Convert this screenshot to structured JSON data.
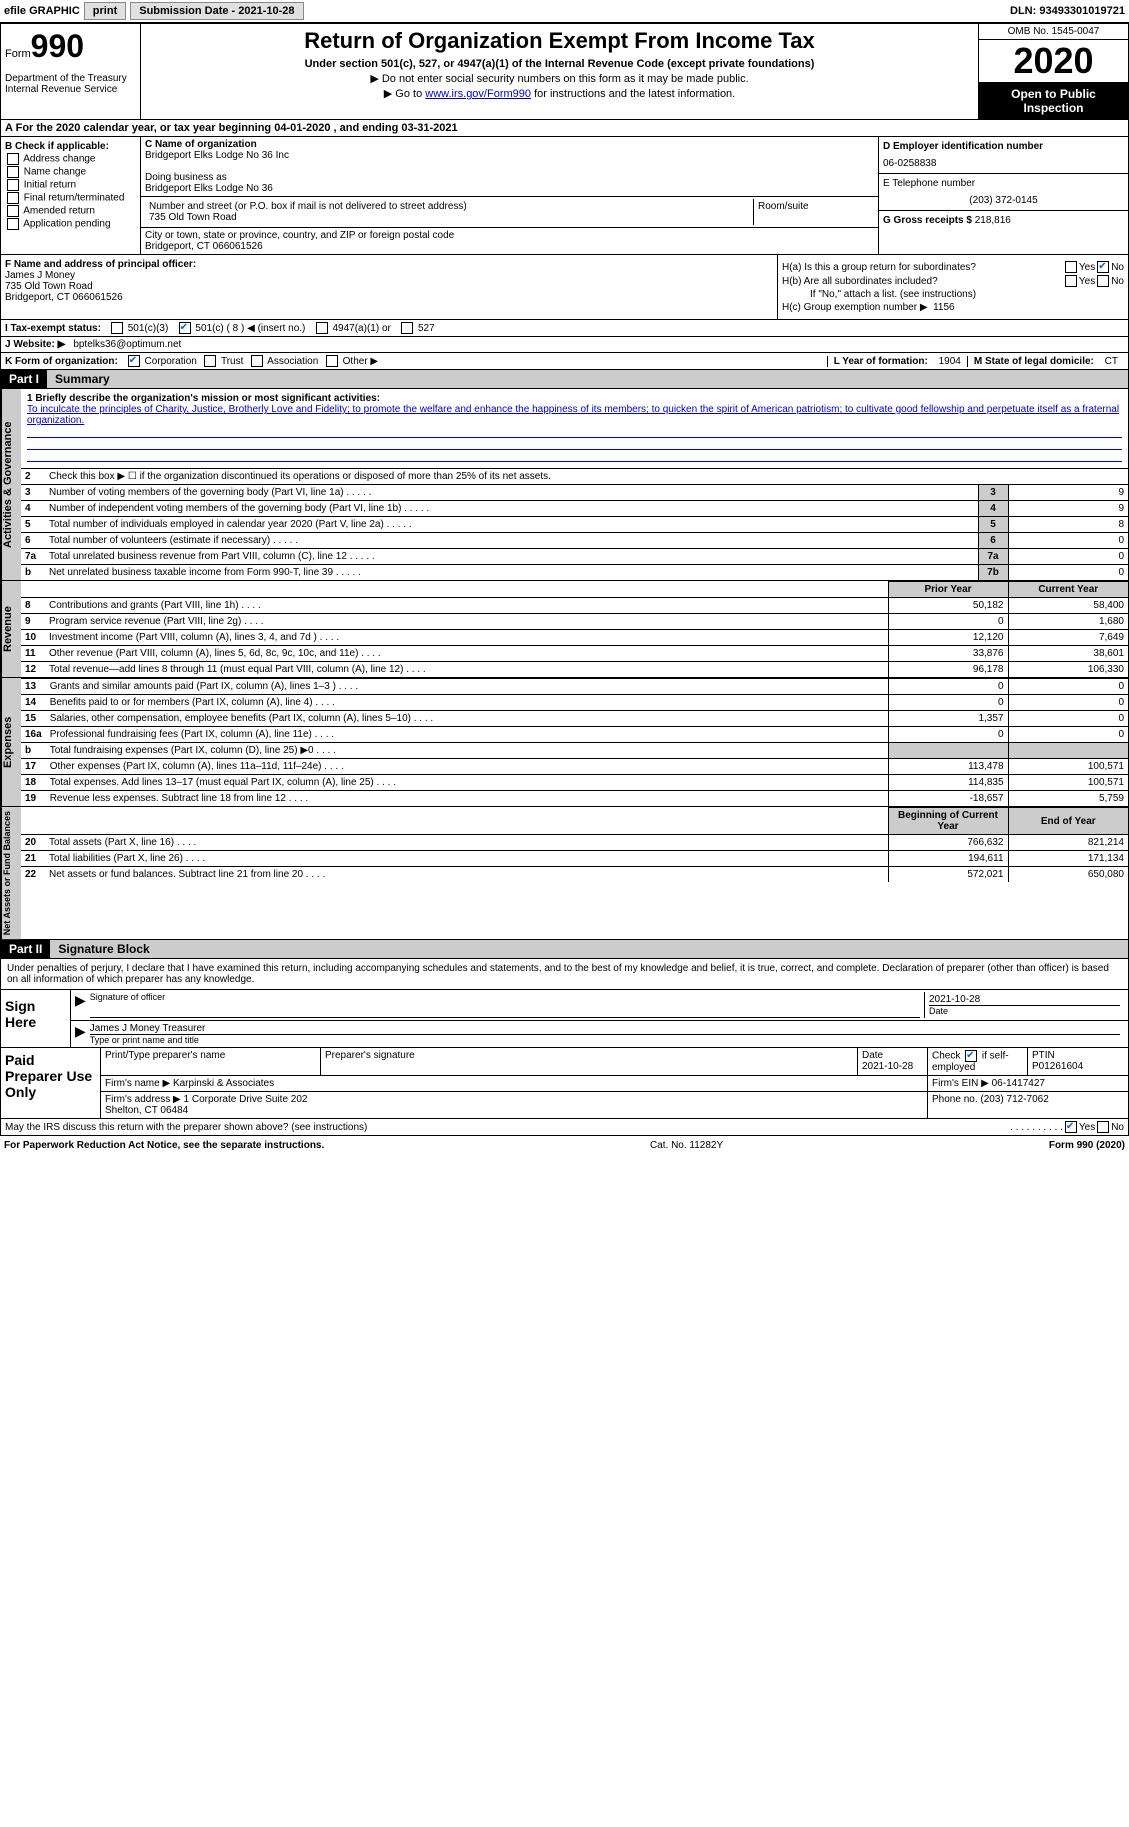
{
  "topbar": {
    "efile": "efile GRAPHIC",
    "print": "print",
    "submission": "Submission Date - 2021-10-28",
    "dln": "DLN: 93493301019721"
  },
  "header": {
    "form_word": "Form",
    "form_num": "990",
    "dept": "Department of the Treasury\nInternal Revenue Service",
    "title": "Return of Organization Exempt From Income Tax",
    "subtitle": "Under section 501(c), 527, or 4947(a)(1) of the Internal Revenue Code (except private foundations)",
    "note1": "▶ Do not enter social security numbers on this form as it may be made public.",
    "note2_pre": "▶ Go to ",
    "note2_link": "www.irs.gov/Form990",
    "note2_post": " for instructions and the latest information.",
    "omb": "OMB No. 1545-0047",
    "year": "2020",
    "inspect": "Open to Public Inspection"
  },
  "period": "For the 2020 calendar year, or tax year beginning 04-01-2020    , and ending 03-31-2021",
  "boxB": {
    "hdr": "B Check if applicable:",
    "items": [
      "Address change",
      "Name change",
      "Initial return",
      "Final return/terminated",
      "Amended return",
      "Application pending"
    ]
  },
  "boxC": {
    "name_lbl": "C Name of organization",
    "name": "Bridgeport Elks Lodge No 36 Inc",
    "dba_lbl": "Doing business as",
    "dba": "Bridgeport Elks Lodge No 36",
    "addr_lbl": "Number and street (or P.O. box if mail is not delivered to street address)",
    "room_lbl": "Room/suite",
    "addr": "735 Old Town Road",
    "city_lbl": "City or town, state or province, country, and ZIP or foreign postal code",
    "city": "Bridgeport, CT  066061526"
  },
  "boxD": {
    "ein_lbl": "D Employer identification number",
    "ein": "06-0258838",
    "phone_lbl": "E Telephone number",
    "phone": "(203) 372-0145",
    "gross_lbl": "G Gross receipts $",
    "gross": "218,816"
  },
  "boxF": {
    "lbl": "F Name and address of principal officer:",
    "name": "James J Money",
    "addr1": "735 Old Town Road",
    "addr2": "Bridgeport, CT  066061526"
  },
  "boxH": {
    "ha": "H(a)  Is this a group return for subordinates?",
    "hb": "H(b)  Are all subordinates included?",
    "hb_note": "If \"No,\" attach a list. (see instructions)",
    "hc": "H(c)  Group exemption number ▶",
    "hc_val": "1156",
    "yes": "Yes",
    "no": "No"
  },
  "lineI": {
    "lbl": "I    Tax-exempt status:",
    "opts": [
      "501(c)(3)",
      "501(c) ( 8 ) ◀ (insert no.)",
      "4947(a)(1) or",
      "527"
    ]
  },
  "lineJ": {
    "lbl": "J   Website: ▶",
    "val": "bptelks36@optimum.net"
  },
  "lineK": {
    "lbl": "K Form of organization:",
    "opts": [
      "Corporation",
      "Trust",
      "Association",
      "Other ▶"
    ]
  },
  "lineL": {
    "lbl": "L Year of formation:",
    "val": "1904"
  },
  "lineM": {
    "lbl": "M State of legal domicile:",
    "val": "CT"
  },
  "part1": {
    "num": "Part I",
    "title": "Summary"
  },
  "mission": {
    "q": "1  Briefly describe the organization's mission or most significant activities:",
    "ans": "To inculcate the principles of Charity, Justice, Brotherly Love and Fidelity; to promote the welfare and enhance the happiness of its members; to quicken the spirit of American patriotism; to cultivate good fellowship and perpetuate itself as a fraternal organization."
  },
  "line2": "Check this box ▶ ☐  if the organization discontinued its operations or disposed of more than 25% of its net assets.",
  "gov_rows": [
    {
      "n": "3",
      "desc": "Number of voting members of the governing body (Part VI, line 1a)",
      "box": "3",
      "val": "9"
    },
    {
      "n": "4",
      "desc": "Number of independent voting members of the governing body (Part VI, line 1b)",
      "box": "4",
      "val": "9"
    },
    {
      "n": "5",
      "desc": "Total number of individuals employed in calendar year 2020 (Part V, line 2a)",
      "box": "5",
      "val": "8"
    },
    {
      "n": "6",
      "desc": "Total number of volunteers (estimate if necessary)",
      "box": "6",
      "val": "0"
    },
    {
      "n": "7a",
      "desc": "Total unrelated business revenue from Part VIII, column (C), line 12",
      "box": "7a",
      "val": "0"
    },
    {
      "n": "b",
      "desc": "Net unrelated business taxable income from Form 990-T, line 39",
      "box": "7b",
      "val": "0"
    }
  ],
  "cols": {
    "prior": "Prior Year",
    "current": "Current Year"
  },
  "side": {
    "gov": "Activities & Governance",
    "rev": "Revenue",
    "exp": "Expenses",
    "net": "Net Assets or Fund Balances"
  },
  "rev_rows": [
    {
      "n": "8",
      "desc": "Contributions and grants (Part VIII, line 1h)",
      "p": "50,182",
      "c": "58,400"
    },
    {
      "n": "9",
      "desc": "Program service revenue (Part VIII, line 2g)",
      "p": "0",
      "c": "1,680"
    },
    {
      "n": "10",
      "desc": "Investment income (Part VIII, column (A), lines 3, 4, and 7d )",
      "p": "12,120",
      "c": "7,649"
    },
    {
      "n": "11",
      "desc": "Other revenue (Part VIII, column (A), lines 5, 6d, 8c, 9c, 10c, and 11e)",
      "p": "33,876",
      "c": "38,601"
    },
    {
      "n": "12",
      "desc": "Total revenue—add lines 8 through 11 (must equal Part VIII, column (A), line 12)",
      "p": "96,178",
      "c": "106,330"
    }
  ],
  "exp_rows": [
    {
      "n": "13",
      "desc": "Grants and similar amounts paid (Part IX, column (A), lines 1–3 )",
      "p": "0",
      "c": "0"
    },
    {
      "n": "14",
      "desc": "Benefits paid to or for members (Part IX, column (A), line 4)",
      "p": "0",
      "c": "0"
    },
    {
      "n": "15",
      "desc": "Salaries, other compensation, employee benefits (Part IX, column (A), lines 5–10)",
      "p": "1,357",
      "c": "0"
    },
    {
      "n": "16a",
      "desc": "Professional fundraising fees (Part IX, column (A), line 11e)",
      "p": "0",
      "c": "0"
    },
    {
      "n": "b",
      "desc": "Total fundraising expenses (Part IX, column (D), line 25) ▶0",
      "p": "",
      "c": "",
      "shade": true
    },
    {
      "n": "17",
      "desc": "Other expenses (Part IX, column (A), lines 11a–11d, 11f–24e)",
      "p": "113,478",
      "c": "100,571"
    },
    {
      "n": "18",
      "desc": "Total expenses. Add lines 13–17 (must equal Part IX, column (A), line 25)",
      "p": "114,835",
      "c": "100,571"
    },
    {
      "n": "19",
      "desc": "Revenue less expenses. Subtract line 18 from line 12",
      "p": "-18,657",
      "c": "5,759"
    }
  ],
  "net_cols": {
    "begin": "Beginning of Current Year",
    "end": "End of Year"
  },
  "net_rows": [
    {
      "n": "20",
      "desc": "Total assets (Part X, line 16)",
      "p": "766,632",
      "c": "821,214"
    },
    {
      "n": "21",
      "desc": "Total liabilities (Part X, line 26)",
      "p": "194,611",
      "c": "171,134"
    },
    {
      "n": "22",
      "desc": "Net assets or fund balances. Subtract line 21 from line 20",
      "p": "572,021",
      "c": "650,080"
    }
  ],
  "part2": {
    "num": "Part II",
    "title": "Signature Block"
  },
  "sig": {
    "decl": "Under penalties of perjury, I declare that I have examined this return, including accompanying schedules and statements, and to the best of my knowledge and belief, it is true, correct, and complete. Declaration of preparer (other than officer) is based on all information of which preparer has any knowledge.",
    "sign_here": "Sign Here",
    "sig_officer": "Signature of officer",
    "date": "Date",
    "date_val": "2021-10-28",
    "name_title": "James J Money Treasurer",
    "type_lbl": "Type or print name and title"
  },
  "prep": {
    "hdr": "Paid Preparer Use Only",
    "print_lbl": "Print/Type preparer's name",
    "sig_lbl": "Preparer's signature",
    "date_lbl": "Date",
    "date_val": "2021-10-28",
    "check_lbl": "Check ☑ if self-employed",
    "ptin_lbl": "PTIN",
    "ptin": "P01261604",
    "firm_name_lbl": "Firm's name    ▶",
    "firm_name": "Karpinski & Associates",
    "firm_ein_lbl": "Firm's EIN ▶",
    "firm_ein": "06-1417427",
    "firm_addr_lbl": "Firm's address ▶",
    "firm_addr": "1 Corporate Drive Suite 202\nShelton, CT  06484",
    "phone_lbl": "Phone no.",
    "phone": "(203) 712-7062"
  },
  "discuss": {
    "q": "May the IRS discuss this return with the preparer shown above? (see instructions)",
    "yes": "Yes",
    "no": "No"
  },
  "footer": {
    "left": "For Paperwork Reduction Act Notice, see the separate instructions.",
    "mid": "Cat. No. 11282Y",
    "right": "Form 990 (2020)"
  }
}
